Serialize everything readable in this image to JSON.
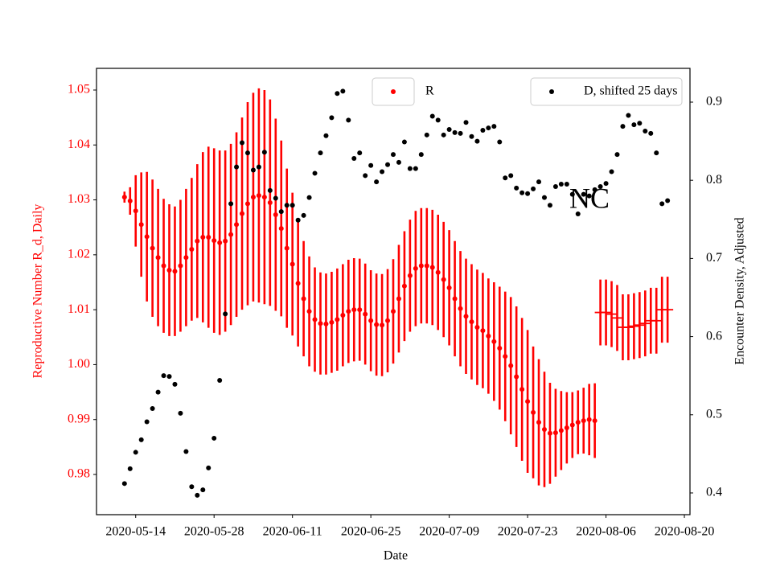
{
  "chart_data": {
    "type": "scatter",
    "x_label": "Date",
    "y_label": "Reproductive Number R_d, Daily",
    "y2_label": "Encounter Density, Adjusted",
    "annotation": "NC",
    "xlim": [
      "2020-05-07",
      "2020-08-21"
    ],
    "xticks": [
      "2020-05-14",
      "2020-05-28",
      "2020-06-11",
      "2020-06-25",
      "2020-07-09",
      "2020-07-23",
      "2020-08-06",
      "2020-08-20"
    ],
    "ylim": [
      0.97268,
      1.05395
    ],
    "yticks": [
      0.98,
      0.99,
      {
        "value": 1,
        "label": "1.00"
      },
      1.01,
      1.02,
      1.03,
      1.04,
      1.05
    ],
    "y2lim": [
      0.3722,
      0.9432
    ],
    "y2ticks": [
      0.4,
      0.5,
      0.6,
      0.7,
      0.8,
      0.9
    ],
    "y_label_color": "#ff0000",
    "series": [
      {
        "name": "R",
        "color": "#ff0000",
        "marker": "o",
        "legend": "upper center",
        "x": [
          "2020-05-12",
          "2020-05-13",
          "2020-05-14",
          "2020-05-15",
          "2020-05-16",
          "2020-05-17",
          "2020-05-18",
          "2020-05-19",
          "2020-05-20",
          "2020-05-21",
          "2020-05-22",
          "2020-05-23",
          "2020-05-24",
          "2020-05-25",
          "2020-05-26",
          "2020-05-27",
          "2020-05-28",
          "2020-05-29",
          "2020-05-30",
          "2020-05-31",
          "2020-06-01",
          "2020-06-02",
          "2020-06-03",
          "2020-06-04",
          "2020-06-05",
          "2020-06-06",
          "2020-06-07",
          "2020-06-08",
          "2020-06-09",
          "2020-06-10",
          "2020-06-11",
          "2020-06-12",
          "2020-06-13",
          "2020-06-14",
          "2020-06-15",
          "2020-06-16",
          "2020-06-17",
          "2020-06-18",
          "2020-06-19",
          "2020-06-20",
          "2020-06-21",
          "2020-06-22",
          "2020-06-23",
          "2020-06-24",
          "2020-06-25",
          "2020-06-26",
          "2020-06-27",
          "2020-06-28",
          "2020-06-29",
          "2020-06-30",
          "2020-07-01",
          "2020-07-02",
          "2020-07-03",
          "2020-07-04",
          "2020-07-05",
          "2020-07-06",
          "2020-07-07",
          "2020-07-08",
          "2020-07-09",
          "2020-07-10",
          "2020-07-11",
          "2020-07-12",
          "2020-07-13",
          "2020-07-14",
          "2020-07-15",
          "2020-07-16",
          "2020-07-17",
          "2020-07-18",
          "2020-07-19",
          "2020-07-20",
          "2020-07-21",
          "2020-07-22",
          "2020-07-23",
          "2020-07-24",
          "2020-07-25",
          "2020-07-26",
          "2020-07-27",
          "2020-07-28",
          "2020-07-29",
          "2020-07-30",
          "2020-07-31",
          "2020-08-01",
          "2020-08-02",
          "2020-08-03",
          "2020-08-04"
        ],
        "values": [
          1.0305,
          1.0298,
          1.028,
          1.0255,
          1.0233,
          1.0212,
          1.0195,
          1.018,
          1.0172,
          1.017,
          1.018,
          1.0195,
          1.021,
          1.0225,
          1.0232,
          1.0232,
          1.0226,
          1.0222,
          1.0225,
          1.0237,
          1.0255,
          1.0275,
          1.0293,
          1.0305,
          1.0308,
          1.0305,
          1.0295,
          1.0273,
          1.0248,
          1.0212,
          1.0183,
          1.0148,
          1.012,
          1.0097,
          1.0082,
          1.0075,
          1.0074,
          1.0077,
          1.0082,
          1.009,
          1.0097,
          1.01,
          1.01,
          1.0092,
          1.008,
          1.0073,
          1.0072,
          1.008,
          1.0097,
          1.012,
          1.0143,
          1.0162,
          1.0175,
          1.018,
          1.018,
          1.0177,
          1.0168,
          1.0155,
          1.014,
          1.012,
          1.0102,
          1.0088,
          1.0078,
          1.0068,
          1.0062,
          1.0052,
          1.0042,
          1.003,
          1.0015,
          0.9998,
          0.9978,
          0.9955,
          0.9933,
          0.9913,
          0.9895,
          0.9882,
          0.9875,
          0.9876,
          0.988,
          0.9885,
          0.989,
          0.9895,
          0.9898,
          0.99,
          0.9898
        ],
        "errors": [
          0.001,
          0.0025,
          0.0065,
          0.0095,
          0.0118,
          0.0125,
          0.0125,
          0.0122,
          0.012,
          0.0118,
          0.012,
          0.0125,
          0.013,
          0.014,
          0.0155,
          0.0165,
          0.0168,
          0.0168,
          0.0165,
          0.0165,
          0.0168,
          0.0175,
          0.0185,
          0.019,
          0.0195,
          0.0195,
          0.0188,
          0.0175,
          0.016,
          0.0145,
          0.013,
          0.0115,
          0.0105,
          0.01,
          0.0095,
          0.0093,
          0.0092,
          0.0092,
          0.0093,
          0.0093,
          0.0094,
          0.0094,
          0.0093,
          0.0092,
          0.0092,
          0.0093,
          0.0093,
          0.0094,
          0.0095,
          0.0098,
          0.01,
          0.0102,
          0.0105,
          0.0105,
          0.0105,
          0.0105,
          0.0105,
          0.0105,
          0.0105,
          0.0105,
          0.0105,
          0.0105,
          0.0105,
          0.0105,
          0.0105,
          0.0105,
          0.0108,
          0.0112,
          0.0118,
          0.0125,
          0.0128,
          0.013,
          0.013,
          0.012,
          0.0115,
          0.0105,
          0.0092,
          0.008,
          0.0072,
          0.0065,
          0.006,
          0.0058,
          0.006,
          0.0065,
          0.0068
        ]
      },
      {
        "color": "#ff0000",
        "marker": "_",
        "x": [
          "2020-08-05",
          "2020-08-06",
          "2020-08-07",
          "2020-08-08",
          "2020-08-09",
          "2020-08-10",
          "2020-08-11",
          "2020-08-12",
          "2020-08-13",
          "2020-08-14",
          "2020-08-15",
          "2020-08-16",
          "2020-08-17"
        ],
        "values": [
          1.0095,
          1.0095,
          1.0092,
          1.0085,
          1.0068,
          1.0068,
          1.007,
          1.0072,
          1.0075,
          1.008,
          1.008,
          1.01,
          1.01
        ],
        "errors": [
          0.006,
          0.006,
          0.006,
          0.006,
          0.006,
          0.006,
          0.006,
          0.006,
          0.006,
          0.006,
          0.006,
          0.006,
          0.006
        ]
      },
      {
        "name": "D, shifted 25 days",
        "color": "#000000",
        "marker": "o",
        "axis": "y2",
        "legend": "upper right",
        "x": [
          "2020-05-12",
          "2020-05-13",
          "2020-05-14",
          "2020-05-15",
          "2020-05-16",
          "2020-05-17",
          "2020-05-18",
          "2020-05-19",
          "2020-05-20",
          "2020-05-21",
          "2020-05-22",
          "2020-05-23",
          "2020-05-24",
          "2020-05-25",
          "2020-05-26",
          "2020-05-27",
          "2020-05-28",
          "2020-05-29",
          "2020-05-30",
          "2020-05-31",
          "2020-06-01",
          "2020-06-02",
          "2020-06-03",
          "2020-06-04",
          "2020-06-05",
          "2020-06-06",
          "2020-06-07",
          "2020-06-08",
          "2020-06-09",
          "2020-06-10",
          "2020-06-11",
          "2020-06-12",
          "2020-06-13",
          "2020-06-14",
          "2020-06-15",
          "2020-06-16",
          "2020-06-17",
          "2020-06-18",
          "2020-06-19",
          "2020-06-20",
          "2020-06-21",
          "2020-06-22",
          "2020-06-23",
          "2020-06-24",
          "2020-06-25",
          "2020-06-26",
          "2020-06-27",
          "2020-06-28",
          "2020-06-29",
          "2020-06-30",
          "2020-07-01",
          "2020-07-02",
          "2020-07-03",
          "2020-07-04",
          "2020-07-05",
          "2020-07-06",
          "2020-07-07",
          "2020-07-08",
          "2020-07-09",
          "2020-07-10",
          "2020-07-11",
          "2020-07-12",
          "2020-07-13",
          "2020-07-14",
          "2020-07-15",
          "2020-07-16",
          "2020-07-17",
          "2020-07-18",
          "2020-07-19",
          "2020-07-20",
          "2020-07-21",
          "2020-07-22",
          "2020-07-23",
          "2020-07-24",
          "2020-07-25",
          "2020-07-26",
          "2020-07-27",
          "2020-07-28",
          "2020-07-29",
          "2020-07-30",
          "2020-07-31",
          "2020-08-01",
          "2020-08-02",
          "2020-08-03",
          "2020-08-04",
          "2020-08-05",
          "2020-08-06",
          "2020-08-07",
          "2020-08-08",
          "2020-08-09",
          "2020-08-10",
          "2020-08-11",
          "2020-08-12",
          "2020-08-13",
          "2020-08-14",
          "2020-08-15",
          "2020-08-16",
          "2020-08-17"
        ],
        "values": [
          0.412,
          0.431,
          0.452,
          0.468,
          0.491,
          0.508,
          0.529,
          0.55,
          0.549,
          0.539,
          0.502,
          0.453,
          0.408,
          0.397,
          0.404,
          0.432,
          0.47,
          0.544,
          0.629,
          0.77,
          0.817,
          0.848,
          0.835,
          0.813,
          0.817,
          0.836,
          0.787,
          0.777,
          0.76,
          0.768,
          0.768,
          0.749,
          0.755,
          0.778,
          0.809,
          0.835,
          0.857,
          0.88,
          0.911,
          0.914,
          0.877,
          0.828,
          0.835,
          0.806,
          0.819,
          0.798,
          0.811,
          0.82,
          0.833,
          0.823,
          0.849,
          0.815,
          0.815,
          0.833,
          0.858,
          0.882,
          0.877,
          0.858,
          0.865,
          0.861,
          0.86,
          0.874,
          0.856,
          0.85,
          0.864,
          0.867,
          0.869,
          0.849,
          0.803,
          0.806,
          0.79,
          0.784,
          0.783,
          0.789,
          0.798,
          0.778,
          0.768,
          0.792,
          0.795,
          0.795,
          0.782,
          0.757,
          0.782,
          0.78,
          0.788,
          0.792,
          0.796,
          0.811,
          0.833,
          0.869,
          0.883,
          0.871,
          0.873,
          0.863,
          0.86,
          0.835,
          0.77,
          0.774
        ]
      }
    ]
  }
}
